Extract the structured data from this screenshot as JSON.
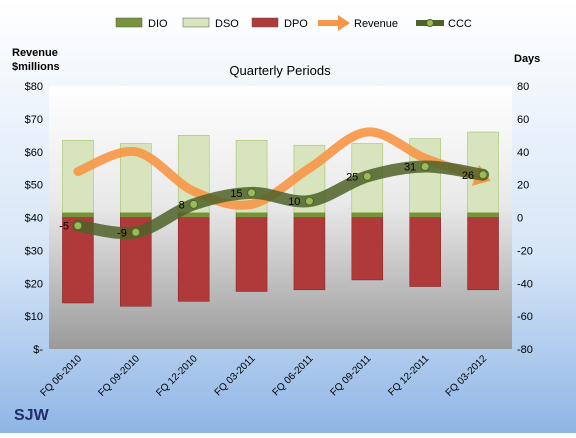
{
  "chart_data": {
    "type": "bar",
    "title": "Quarterly Periods",
    "company": "SJW",
    "left_axis_label_line1": "Revenue",
    "left_axis_label_line2": "$millions",
    "right_axis_label": "Days",
    "categories": [
      "FQ 06-2010",
      "FQ 09-2010",
      "FQ 12-2010",
      "FQ 03-2011",
      "FQ 06-2011",
      "FQ 09-2011",
      "FQ 12-2011",
      "FQ 03-2012"
    ],
    "left_ticks": [
      "$80",
      "$70",
      "$60",
      "$50",
      "$40",
      "$30",
      "$20",
      "$10",
      "$-"
    ],
    "right_ticks": [
      "80",
      "60",
      "40",
      "20",
      "0",
      "-20",
      "-40",
      "-60",
      "-80"
    ],
    "left_ylim": [
      0,
      80
    ],
    "right_ylim": [
      -80,
      80
    ],
    "legend_position": "top",
    "series": [
      {
        "name": "DIO",
        "axis": "right",
        "kind": "bar",
        "color": "#77933c",
        "values": [
          3,
          3,
          3,
          3,
          3,
          3,
          3,
          3
        ]
      },
      {
        "name": "DSO",
        "axis": "right",
        "kind": "bar",
        "color": "#d7e4bd",
        "values": [
          44,
          42,
          47,
          44,
          41,
          42,
          45,
          49
        ]
      },
      {
        "name": "DPO",
        "axis": "right",
        "kind": "bar",
        "color": "#b03a3a",
        "values": [
          -52,
          -54,
          -51,
          -45,
          -44,
          -38,
          -42,
          -44
        ]
      },
      {
        "name": "Revenue",
        "axis": "left",
        "kind": "line",
        "color": "#f79646",
        "values": [
          54,
          60,
          48,
          44,
          55,
          66,
          58,
          52
        ]
      },
      {
        "name": "CCC",
        "axis": "right",
        "kind": "line",
        "color": "#4f6228",
        "values": [
          -5,
          -9,
          8,
          15,
          10,
          25,
          31,
          26
        ]
      }
    ],
    "ccc_labels": [
      "-5",
      "-9",
      "8",
      "15",
      "10",
      "25",
      "31",
      "26"
    ]
  }
}
